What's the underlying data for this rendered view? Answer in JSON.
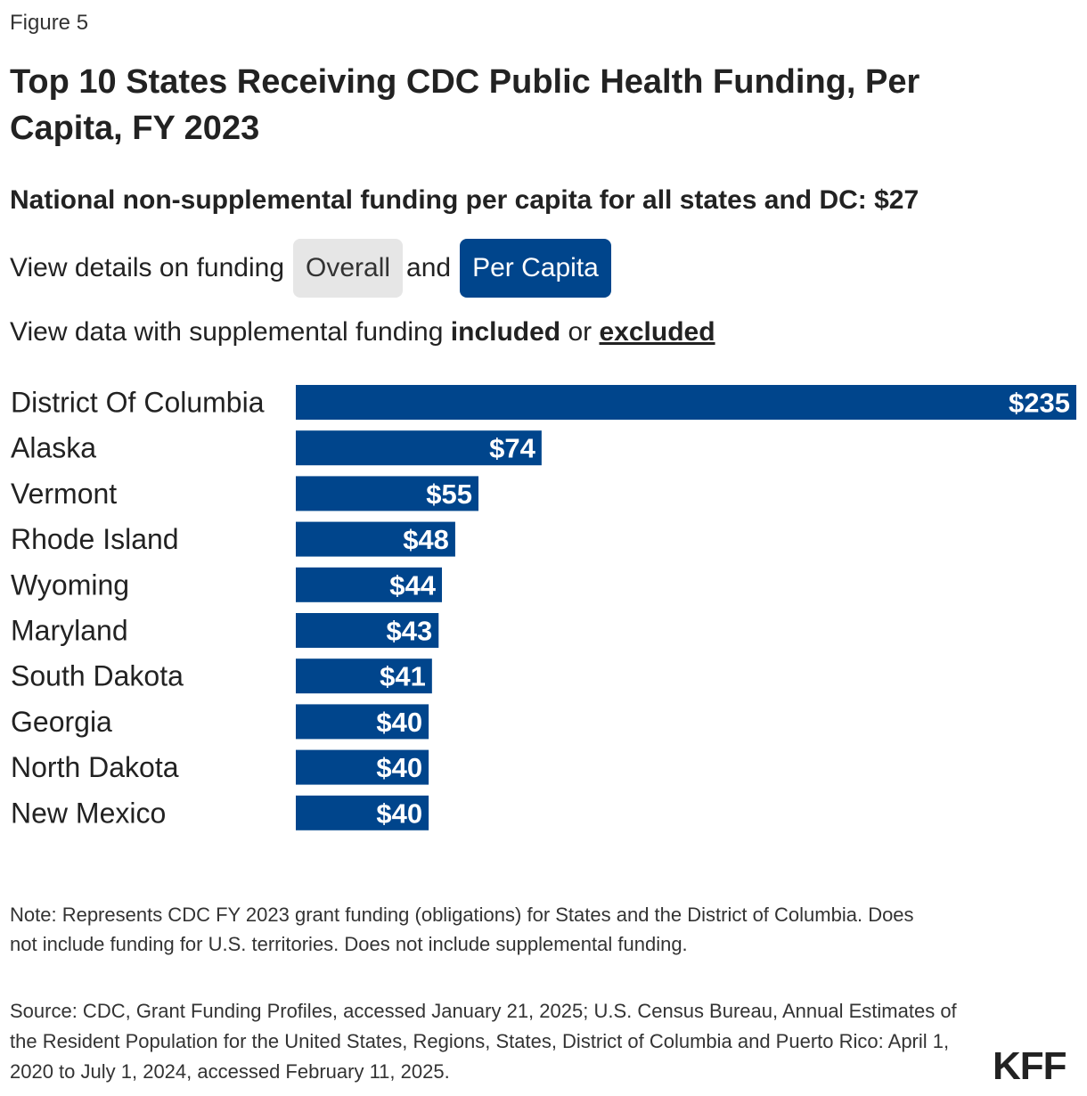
{
  "header": {
    "figure_label": "Figure 5",
    "title": "Top 10 States Receiving CDC Public Health Funding, Per Capita, FY 2023",
    "subtitle": "National non-supplemental funding per capita for all states and DC: $27"
  },
  "controls": {
    "view_prefix": "View details on funding",
    "overall_label": "Overall",
    "and_text": "and",
    "per_capita_label": "Per Capita",
    "supp_prefix": "View data with supplemental funding",
    "included_label": "included",
    "or_text": "or",
    "excluded_label": "excluded"
  },
  "colors": {
    "bar": "#00458c",
    "label_text": "#222222",
    "value_text": "#ffffff"
  },
  "chart_data": {
    "type": "bar",
    "orientation": "horizontal",
    "title": "Top 10 States Receiving CDC Public Health Funding, Per Capita, FY 2023",
    "value_prefix": "$",
    "xlim": [
      0,
      235
    ],
    "categories": [
      "District Of Columbia",
      "Alaska",
      "Vermont",
      "Rhode Island",
      "Wyoming",
      "Maryland",
      "South Dakota",
      "Georgia",
      "North Dakota",
      "New Mexico"
    ],
    "values": [
      235,
      74,
      55,
      48,
      44,
      43,
      41,
      40,
      40,
      40
    ],
    "data_labels": [
      "$235",
      "$74",
      "$55",
      "$48",
      "$44",
      "$43",
      "$41",
      "$40",
      "$40",
      "$40"
    ],
    "grid": false,
    "legend": "none"
  },
  "footer": {
    "note": "Note: Represents CDC FY 2023 grant funding (obligations) for States and the District of Columbia. Does not include funding for U.S. territories. Does not include supplemental funding.",
    "source": "Source: CDC, Grant Funding Profiles, accessed January 21, 2025; U.S. Census Bureau, Annual Estimates of the Resident Population for the United States, Regions, States, District of Columbia and Puerto Rico: April 1, 2020 to July 1, 2024, accessed February 11, 2025.",
    "logo": "KFF"
  }
}
